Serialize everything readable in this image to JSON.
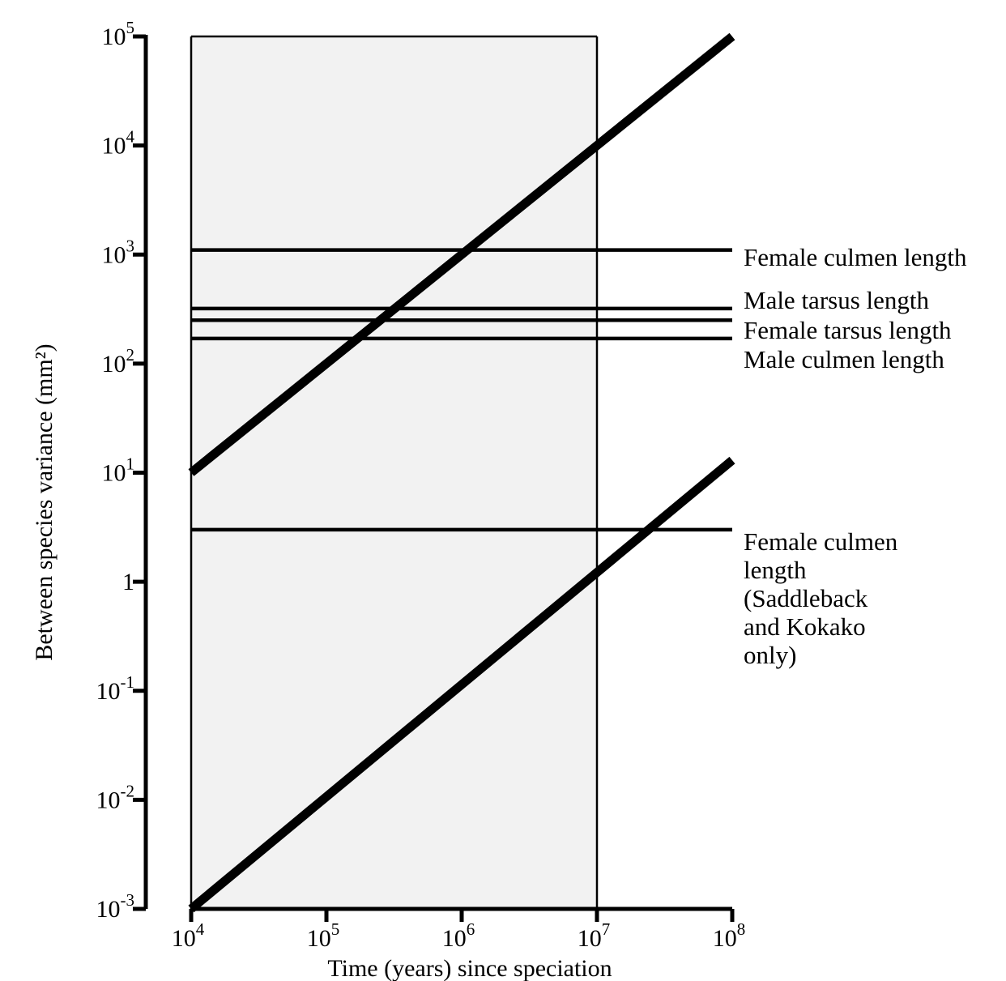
{
  "chart_data": {
    "type": "line",
    "title": "",
    "xlabel": "Time (years) since speciation",
    "ylabel": "Between species variance (mm²)",
    "x_scale": "log",
    "y_scale": "log",
    "xlim": [
      10000,
      100000000
    ],
    "ylim": [
      0.001,
      100000
    ],
    "grid": false,
    "legend": "none",
    "x_ticks": [
      {
        "base": "10",
        "exp": "4"
      },
      {
        "base": "10",
        "exp": "5"
      },
      {
        "base": "10",
        "exp": "6"
      },
      {
        "base": "10",
        "exp": "7"
      },
      {
        "base": "10",
        "exp": "8"
      }
    ],
    "y_ticks": [
      {
        "base": "10",
        "exp": "5"
      },
      {
        "base": "10",
        "exp": "4"
      },
      {
        "base": "10",
        "exp": "3"
      },
      {
        "base": "10",
        "exp": "2"
      },
      {
        "base": "10",
        "exp": "1"
      },
      {
        "base": "1",
        "exp": ""
      },
      {
        "base": "10",
        "exp": "-1"
      },
      {
        "base": "10",
        "exp": "-2"
      },
      {
        "base": "10",
        "exp": "-3"
      }
    ],
    "shaded_region": {
      "x": [
        10000,
        10000000
      ],
      "color": "#f2f2f2"
    },
    "reference_lines": [
      {
        "name": "Female culmen length",
        "y": 1100
      },
      {
        "name": "Male tarsus length",
        "y": 320
      },
      {
        "name": "Female tarsus length",
        "y": 250
      },
      {
        "name": "Male culmen length",
        "y": 170
      },
      {
        "name": "Female culmen length (Saddleback and Kokako only)",
        "y": 3
      }
    ],
    "reference_labels": [
      {
        "lines": [
          "Female culmen length"
        ]
      },
      {
        "lines": [
          "Male tarsus length"
        ]
      },
      {
        "lines": [
          "Female tarsus length"
        ]
      },
      {
        "lines": [
          "Male culmen length"
        ]
      },
      {
        "lines": [
          "Female culmen",
          "length",
          "(Saddleback",
          "and Kokako",
          "only)"
        ]
      }
    ],
    "rate_lines": [
      {
        "x": [
          10000,
          100000000
        ],
        "y": [
          10,
          100000
        ]
      },
      {
        "x": [
          10000,
          100000000
        ],
        "y": [
          0.001,
          13
        ]
      }
    ],
    "colors": {
      "ink": "#000000",
      "shading": "#f2f2f2"
    }
  }
}
